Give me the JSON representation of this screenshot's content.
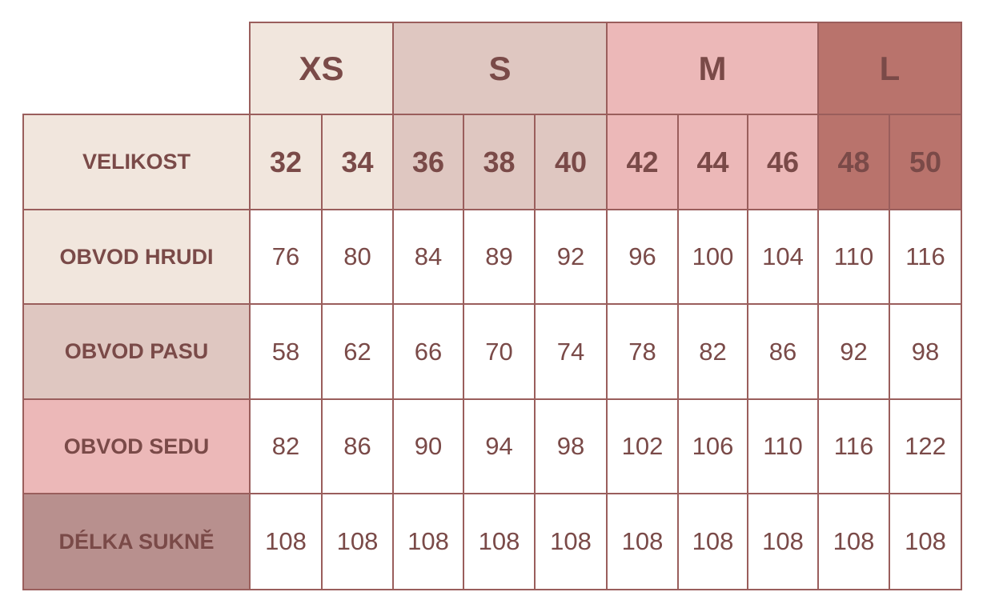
{
  "header": {
    "corner_label": "VELIKOST"
  },
  "groups": [
    {
      "label": "XS",
      "sizes": [
        32,
        34
      ]
    },
    {
      "label": "S",
      "sizes": [
        36,
        38,
        40
      ]
    },
    {
      "label": "M",
      "sizes": [
        42,
        44,
        46
      ]
    },
    {
      "label": "L",
      "sizes": [
        48,
        50
      ]
    }
  ],
  "rows": [
    {
      "label": "OBVOD HRUDI",
      "values": [
        76,
        80,
        84,
        89,
        92,
        96,
        100,
        104,
        110,
        116
      ]
    },
    {
      "label": "OBVOD PASU",
      "values": [
        58,
        62,
        66,
        70,
        74,
        78,
        82,
        86,
        92,
        98
      ]
    },
    {
      "label": "OBVOD SEDU",
      "values": [
        82,
        86,
        90,
        94,
        98,
        102,
        106,
        110,
        116,
        122
      ]
    },
    {
      "label": "DÉLKA SUKNĚ",
      "values": [
        108,
        108,
        108,
        108,
        108,
        108,
        108,
        108,
        108,
        108
      ]
    }
  ]
}
